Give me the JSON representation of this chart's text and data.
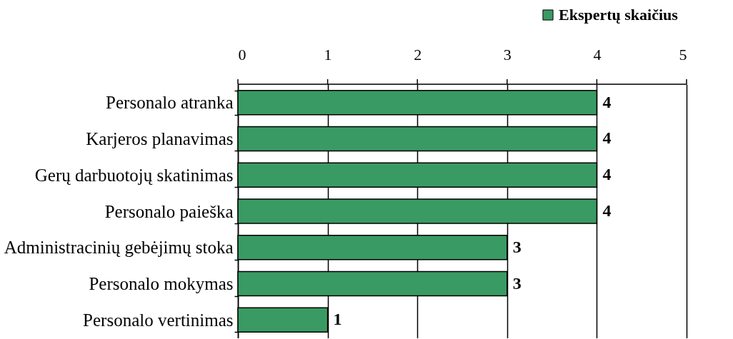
{
  "chart_data": {
    "type": "bar",
    "orientation": "horizontal",
    "categories": [
      "Personalo atranka",
      "Karjeros planavimas",
      "Gerų darbuotojų skatinimas",
      "Personalo paieška",
      "Administracinių gebėjimų stoka",
      "Personalo mokymas",
      "Personalo vertinimas"
    ],
    "series": [
      {
        "name": "Ekspertų skaičius",
        "color": "#3a9a63",
        "values": [
          4,
          4,
          4,
          4,
          3,
          3,
          1
        ]
      }
    ],
    "xlim": [
      0,
      5
    ],
    "xticks": [
      0,
      1,
      2,
      3,
      4,
      5
    ],
    "grid": "x",
    "legend": "top right",
    "data_labels": true
  }
}
